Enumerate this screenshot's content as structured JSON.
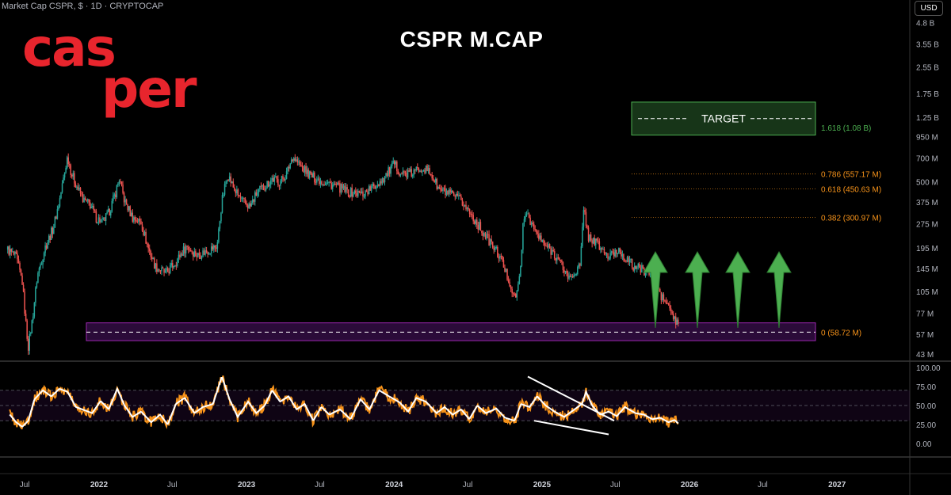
{
  "header": {
    "symbol_line": "Market Cap CSPR, $ · 1D · CRYPTOCAP",
    "currency_button": "USD"
  },
  "logo_text": [
    "cas",
    "per"
  ],
  "colors": {
    "up": "#26a69a",
    "down": "#ef5350",
    "rsi": "#f7931a",
    "rsi_ma": "#ffffff",
    "target": "#4caf50",
    "fib": "#f7931a",
    "zone": "#7b1fa2",
    "logo": "#e8252d",
    "arrow": "#4caf50"
  },
  "chart_data": [
    {
      "type": "candlestick",
      "title": "CSPR M.CAP",
      "y_scale": "log",
      "y_unit": "USD",
      "y_ticks": [
        "4.8 B",
        "3.55 B",
        "2.55 B",
        "1.75 B",
        "1.25 B",
        "950 M",
        "700 M",
        "500 M",
        "375 M",
        "275 M",
        "195 M",
        "145 M",
        "105 M",
        "77 M",
        "57 M",
        "43 M"
      ],
      "x_ticks": [
        "Jul",
        "2022",
        "Jul",
        "2023",
        "Jul",
        "2024",
        "Jul",
        "2025",
        "Jul",
        "2026",
        "Jul",
        "2027"
      ],
      "x_range": [
        "2021-05-01",
        "2027-06-30"
      ],
      "series": [
        {
          "values_usd_millions": [
            [
              "2021-05-20",
              190
            ],
            [
              "2021-06-10",
              170
            ],
            [
              "2021-06-25",
              120
            ],
            [
              "2021-07-05",
              62
            ],
            [
              "2021-07-10",
              48
            ],
            [
              "2021-07-20",
              70
            ],
            [
              "2021-08-01",
              130
            ],
            [
              "2021-08-20",
              195
            ],
            [
              "2021-09-10",
              260
            ],
            [
              "2021-09-25",
              380
            ],
            [
              "2021-10-05",
              520
            ],
            [
              "2021-10-15",
              720
            ],
            [
              "2021-10-25",
              560
            ],
            [
              "2021-11-10",
              450
            ],
            [
              "2021-11-25",
              380
            ],
            [
              "2021-12-10",
              360
            ],
            [
              "2021-12-25",
              300
            ],
            [
              "2022-01-10",
              280
            ],
            [
              "2022-01-25",
              320
            ],
            [
              "2022-02-10",
              420
            ],
            [
              "2022-02-20",
              520
            ],
            [
              "2022-03-05",
              380
            ],
            [
              "2022-03-25",
              300
            ],
            [
              "2022-04-15",
              280
            ],
            [
              "2022-05-01",
              200
            ],
            [
              "2022-05-20",
              150
            ],
            [
              "2022-06-15",
              135
            ],
            [
              "2022-07-10",
              160
            ],
            [
              "2022-08-05",
              200
            ],
            [
              "2022-09-01",
              175
            ],
            [
              "2022-10-01",
              190
            ],
            [
              "2022-10-20",
              200
            ],
            [
              "2022-11-01",
              380
            ],
            [
              "2022-11-15",
              560
            ],
            [
              "2022-12-01",
              450
            ],
            [
              "2022-12-20",
              380
            ],
            [
              "2023-01-10",
              350
            ],
            [
              "2023-01-25",
              420
            ],
            [
              "2023-02-15",
              470
            ],
            [
              "2023-03-05",
              520
            ],
            [
              "2023-03-25",
              500
            ],
            [
              "2023-04-10",
              560
            ],
            [
              "2023-04-25",
              720
            ],
            [
              "2023-05-15",
              620
            ],
            [
              "2023-06-10",
              540
            ],
            [
              "2023-07-10",
              500
            ],
            [
              "2023-08-10",
              470
            ],
            [
              "2023-09-10",
              430
            ],
            [
              "2023-10-15",
              420
            ],
            [
              "2023-11-15",
              470
            ],
            [
              "2023-12-10",
              540
            ],
            [
              "2024-01-01",
              640
            ],
            [
              "2024-01-20",
              560
            ],
            [
              "2024-02-15",
              560
            ],
            [
              "2024-03-10",
              620
            ],
            [
              "2024-04-01",
              560
            ],
            [
              "2024-04-20",
              450
            ],
            [
              "2024-05-15",
              420
            ],
            [
              "2024-06-15",
              380
            ],
            [
              "2024-07-15",
              300
            ],
            [
              "2024-08-10",
              240
            ],
            [
              "2024-09-01",
              200
            ],
            [
              "2024-09-20",
              170
            ],
            [
              "2024-10-15",
              115
            ],
            [
              "2024-10-25",
              95
            ],
            [
              "2024-11-05",
              115
            ],
            [
              "2024-11-15",
              260
            ],
            [
              "2024-11-25",
              330
            ],
            [
              "2024-12-10",
              260
            ],
            [
              "2025-01-01",
              210
            ],
            [
              "2025-02-01",
              180
            ],
            [
              "2025-02-20",
              150
            ],
            [
              "2025-03-10",
              125
            ],
            [
              "2025-03-25",
              140
            ],
            [
              "2025-04-05",
              150
            ],
            [
              "2025-04-15",
              350
            ],
            [
              "2025-04-25",
              230
            ],
            [
              "2025-05-15",
              210
            ],
            [
              "2025-06-15",
              170
            ],
            [
              "2025-07-10",
              190
            ],
            [
              "2025-07-25",
              170
            ],
            [
              "2025-08-15",
              150
            ],
            [
              "2025-09-15",
              140
            ],
            [
              "2025-10-10",
              130
            ],
            [
              "2025-10-20",
              100
            ],
            [
              "2025-11-10",
              85
            ],
            [
              "2025-11-25",
              70
            ],
            [
              "2025-12-05",
              63
            ]
          ]
        }
      ],
      "fib_levels": [
        {
          "ratio": "1.618",
          "value_millions": 1080,
          "label": "1.618 (1.08 B)"
        },
        {
          "ratio": "0.786",
          "value_millions": 557.17,
          "label": "0.786 (557.17 M)"
        },
        {
          "ratio": "0.618",
          "value_millions": 450.63,
          "label": "0.618 (450.63 M)"
        },
        {
          "ratio": "0.382",
          "value_millions": 300.97,
          "label": "0.382 (300.97 M)"
        },
        {
          "ratio": "0",
          "value_millions": 58.72,
          "label": "0 (58.72 M)"
        }
      ],
      "target_label": "TARGET",
      "target_range_millions": [
        970,
        1550
      ],
      "support_zone_millions": [
        52,
        67
      ],
      "projection_arrows": 4
    },
    {
      "type": "line",
      "name": "RSI",
      "y_ticks": [
        "100.00",
        "75.00",
        "50.00",
        "25.00",
        "0.00"
      ],
      "ylim": [
        0,
        100
      ],
      "overbought": 70,
      "oversold": 30,
      "series": [
        {
          "values": [
            [
              "2021-05-25",
              38
            ],
            [
              "2021-06-10",
              28
            ],
            [
              "2021-06-25",
              22
            ],
            [
              "2021-07-10",
              30
            ],
            [
              "2021-07-25",
              58
            ],
            [
              "2021-08-15",
              70
            ],
            [
              "2021-09-05",
              62
            ],
            [
              "2021-09-25",
              72
            ],
            [
              "2021-10-15",
              68
            ],
            [
              "2021-11-05",
              48
            ],
            [
              "2021-11-25",
              44
            ],
            [
              "2021-12-15",
              40
            ],
            [
              "2022-01-05",
              56
            ],
            [
              "2022-01-25",
              45
            ],
            [
              "2022-02-15",
              72
            ],
            [
              "2022-03-05",
              50
            ],
            [
              "2022-03-25",
              35
            ],
            [
              "2022-04-15",
              42
            ],
            [
              "2022-05-10",
              28
            ],
            [
              "2022-06-01",
              38
            ],
            [
              "2022-06-20",
              25
            ],
            [
              "2022-07-10",
              52
            ],
            [
              "2022-08-01",
              60
            ],
            [
              "2022-08-25",
              40
            ],
            [
              "2022-09-15",
              48
            ],
            [
              "2022-10-10",
              52
            ],
            [
              "2022-11-01",
              88
            ],
            [
              "2022-11-20",
              58
            ],
            [
              "2022-12-10",
              35
            ],
            [
              "2023-01-05",
              55
            ],
            [
              "2023-01-25",
              40
            ],
            [
              "2023-02-15",
              50
            ],
            [
              "2023-03-05",
              70
            ],
            [
              "2023-03-25",
              55
            ],
            [
              "2023-04-15",
              62
            ],
            [
              "2023-05-05",
              45
            ],
            [
              "2023-05-25",
              52
            ],
            [
              "2023-06-15",
              30
            ],
            [
              "2023-07-05",
              48
            ],
            [
              "2023-07-25",
              38
            ],
            [
              "2023-08-20",
              45
            ],
            [
              "2023-09-15",
              32
            ],
            [
              "2023-10-10",
              58
            ],
            [
              "2023-11-01",
              45
            ],
            [
              "2023-11-25",
              70
            ],
            [
              "2023-12-20",
              62
            ],
            [
              "2024-01-15",
              54
            ],
            [
              "2024-02-05",
              42
            ],
            [
              "2024-02-25",
              60
            ],
            [
              "2024-03-20",
              55
            ],
            [
              "2024-04-15",
              40
            ],
            [
              "2024-05-05",
              48
            ],
            [
              "2024-05-25",
              38
            ],
            [
              "2024-06-15",
              45
            ],
            [
              "2024-07-05",
              32
            ],
            [
              "2024-07-25",
              50
            ],
            [
              "2024-08-15",
              40
            ],
            [
              "2024-09-10",
              46
            ],
            [
              "2024-10-01",
              34
            ],
            [
              "2024-10-25",
              30
            ],
            [
              "2024-11-10",
              52
            ],
            [
              "2024-12-01",
              48
            ],
            [
              "2024-12-20",
              62
            ],
            [
              "2025-01-10",
              50
            ],
            [
              "2025-02-01",
              42
            ],
            [
              "2025-02-25",
              35
            ],
            [
              "2025-03-20",
              44
            ],
            [
              "2025-04-10",
              52
            ],
            [
              "2025-04-20",
              68
            ],
            [
              "2025-05-05",
              50
            ],
            [
              "2025-05-25",
              38
            ],
            [
              "2025-06-15",
              42
            ],
            [
              "2025-07-05",
              36
            ],
            [
              "2025-07-25",
              48
            ],
            [
              "2025-08-20",
              40
            ],
            [
              "2025-09-10",
              38
            ],
            [
              "2025-10-01",
              32
            ],
            [
              "2025-10-20",
              34
            ],
            [
              "2025-11-10",
              28
            ],
            [
              "2025-11-25",
              31
            ],
            [
              "2025-12-05",
              26
            ]
          ]
        }
      ]
    }
  ]
}
